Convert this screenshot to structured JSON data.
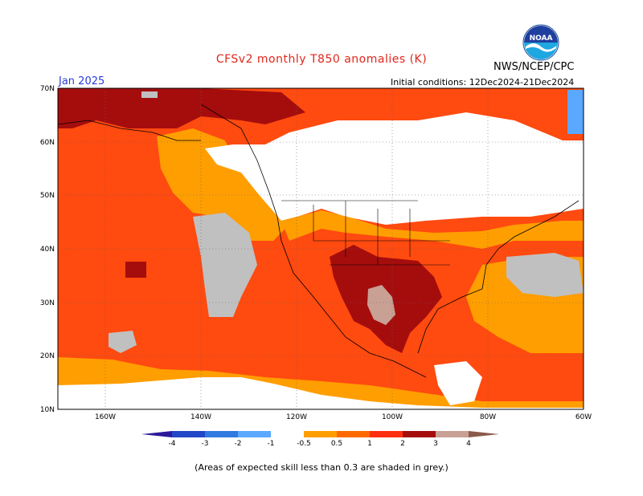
{
  "header": {
    "title": "CFSv2 monthly T850 anomalies (K)",
    "agency": "NWS/NCEP/CPC",
    "logo_text": "NOAA",
    "month": "Jan 2025",
    "initial_conditions": "Initial conditions: 12Dec2024-21Dec2024"
  },
  "map": {
    "lon_labels": [
      "160W",
      "140W",
      "120W",
      "100W",
      "80W",
      "60W"
    ],
    "lat_labels": [
      "70N",
      "60N",
      "50N",
      "40N",
      "30N",
      "20N",
      "10N"
    ],
    "region": {
      "lon_min": -170,
      "lon_max": -60,
      "lat_min": 10,
      "lat_max": 70
    },
    "colors": {
      "ocean_warm_1": "#ff9e00",
      "ocean_warm_2": "#ff4a10",
      "warm_3": "#a50d0d",
      "warm_4": "#c9a094",
      "cold_1": "#5aa8ff",
      "grey_skill": "#c0c0c0",
      "neutral": "#ffffff"
    }
  },
  "colorbar": {
    "labels": [
      "-4",
      "-3",
      "-2",
      "-1",
      "-0.5",
      "0.5",
      "1",
      "2",
      "3",
      "4"
    ],
    "colors": [
      "#2b1a9a",
      "#2146c7",
      "#2f79e0",
      "#5aa8ff",
      "#ffffff",
      "#ff9e00",
      "#ff6a00",
      "#ff2e10",
      "#a50d0d",
      "#c9a094",
      "#8b5a4a"
    ]
  },
  "footnote": "(Areas of expected skill less than 0.3 are shaded in grey.)"
}
